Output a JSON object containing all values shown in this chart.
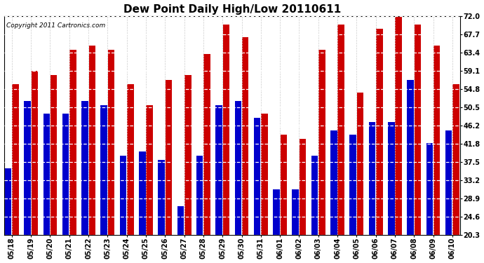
{
  "title": "Dew Point Daily High/Low 20110611",
  "copyright": "Copyright 2011 Cartronics.com",
  "dates": [
    "05/18",
    "05/19",
    "05/20",
    "05/21",
    "05/22",
    "05/23",
    "05/24",
    "05/25",
    "05/26",
    "05/27",
    "05/28",
    "05/29",
    "05/30",
    "05/31",
    "06/01",
    "06/02",
    "06/03",
    "06/04",
    "06/05",
    "06/06",
    "06/07",
    "06/08",
    "06/09",
    "06/10"
  ],
  "highs": [
    56,
    59,
    58,
    64,
    65,
    64,
    56,
    51,
    57,
    58,
    63,
    70,
    67,
    49,
    44,
    43,
    64,
    70,
    54,
    69,
    72,
    70,
    65,
    56
  ],
  "lows": [
    36,
    52,
    49,
    49,
    52,
    51,
    39,
    40,
    38,
    27,
    39,
    51,
    52,
    48,
    31,
    31,
    39,
    45,
    44,
    47,
    47,
    57,
    42,
    45
  ],
  "high_color": "#cc0000",
  "low_color": "#0000cc",
  "background_color": "#ffffff",
  "plot_background": "#ffffff",
  "yticks": [
    20.3,
    24.6,
    28.9,
    33.2,
    37.5,
    41.8,
    46.2,
    50.5,
    54.8,
    59.1,
    63.4,
    67.7,
    72.0
  ],
  "ymin": 20.3,
  "ymax": 72.0,
  "title_fontsize": 11,
  "axis_fontsize": 7,
  "copyright_fontsize": 6.5,
  "bar_width": 0.35,
  "bar_gap": 0.03
}
